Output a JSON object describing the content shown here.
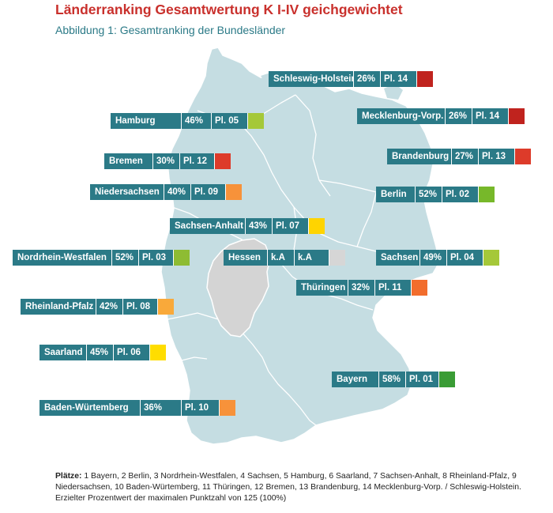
{
  "title": "Länderranking Gesamtwertung K I-IV geichgewichtet",
  "subtitle": "Abbildung 1: Gesamtranking der Bundesländer",
  "colors": {
    "map_fill": "#c5dde2",
    "map_border": "#ffffff",
    "hessen_fill": "#d4d4d4",
    "label_bg": "#2b7a87",
    "rank_dark_red": "#c0231e",
    "rank_red": "#dd3b2a",
    "rank_orange": "#f7923a",
    "rank_yellow": "#ffd400",
    "rank_lime": "#a5c839",
    "rank_green": "#3a9c35",
    "rank_grey": "#d6d6d6"
  },
  "states": [
    {
      "id": "schleswig-holstein",
      "name": "Schleswig-Holstein",
      "pct": "26%",
      "place": "Pl. 14",
      "color": "#c0231e"
    },
    {
      "id": "hamburg",
      "name": "Hamburg",
      "pct": "46%",
      "place": "Pl. 05",
      "color": "#a5c839"
    },
    {
      "id": "mecklenburg-vorp",
      "name": "Mecklenburg-Vorp.",
      "pct": "26%",
      "place": "Pl. 14",
      "color": "#c0231e"
    },
    {
      "id": "brandenburg",
      "name": "Brandenburg",
      "pct": "27%",
      "place": "Pl. 13",
      "color": "#dd3b2a"
    },
    {
      "id": "bremen",
      "name": "Bremen",
      "pct": "30%",
      "place": "Pl. 12",
      "color": "#dd3b2a"
    },
    {
      "id": "niedersachsen",
      "name": "Niedersachsen",
      "pct": "40%",
      "place": "Pl. 09",
      "color": "#f7923a"
    },
    {
      "id": "berlin",
      "name": "Berlin",
      "pct": "52%",
      "place": "Pl. 02",
      "color": "#77b82a"
    },
    {
      "id": "sachsen-anhalt",
      "name": "Sachsen-Anhalt",
      "pct": "43%",
      "place": "Pl. 07",
      "color": "#ffd400"
    },
    {
      "id": "nordrhein-westfalen",
      "name": "Nordrhein-Westfalen",
      "pct": "52%",
      "place": "Pl. 03",
      "color": "#8ebc33"
    },
    {
      "id": "hessen",
      "name": "Hessen",
      "pct": "k.A",
      "place": "k.A",
      "color": "#d6d6d6"
    },
    {
      "id": "sachsen",
      "name": "Sachsen",
      "pct": "49%",
      "place": "Pl. 04",
      "color": "#a5c839"
    },
    {
      "id": "thueringen",
      "name": "Thüringen",
      "pct": "32%",
      "place": "Pl. 11",
      "color": "#f26d2d"
    },
    {
      "id": "rheinland-pfalz",
      "name": "Rheinland-Pfalz",
      "pct": "42%",
      "place": "Pl. 08",
      "color": "#f9a93a"
    },
    {
      "id": "saarland",
      "name": "Saarland",
      "pct": "45%",
      "place": "Pl. 06",
      "color": "#ffdd00"
    },
    {
      "id": "bayern",
      "name": "Bayern",
      "pct": "58%",
      "place": "Pl. 01",
      "color": "#3a9c35"
    },
    {
      "id": "baden-wuertemberg",
      "name": "Baden-Würtemberg",
      "pct": "36%",
      "place": "Pl. 10",
      "color": "#f7923a"
    }
  ],
  "footer": {
    "label": "Plätze:",
    "text": " 1 Bayern, 2 Berlin, 3 Nordrhein-Westfalen, 4 Sachsen, 5 Hamburg, 6 Saarland, 7 Sachsen-Anhalt, 8 Rheinland-Pfalz, 9 Niedersachsen,  10 Baden-Würtemberg, 11 Thüringen, 12 Bremen, 13 Brandenburg, 14 Mecklenburg-Vorp. / Schleswig-Holstein. Erzielter Prozentwert der maximalen Punktzahl von 125 (100%)"
  }
}
